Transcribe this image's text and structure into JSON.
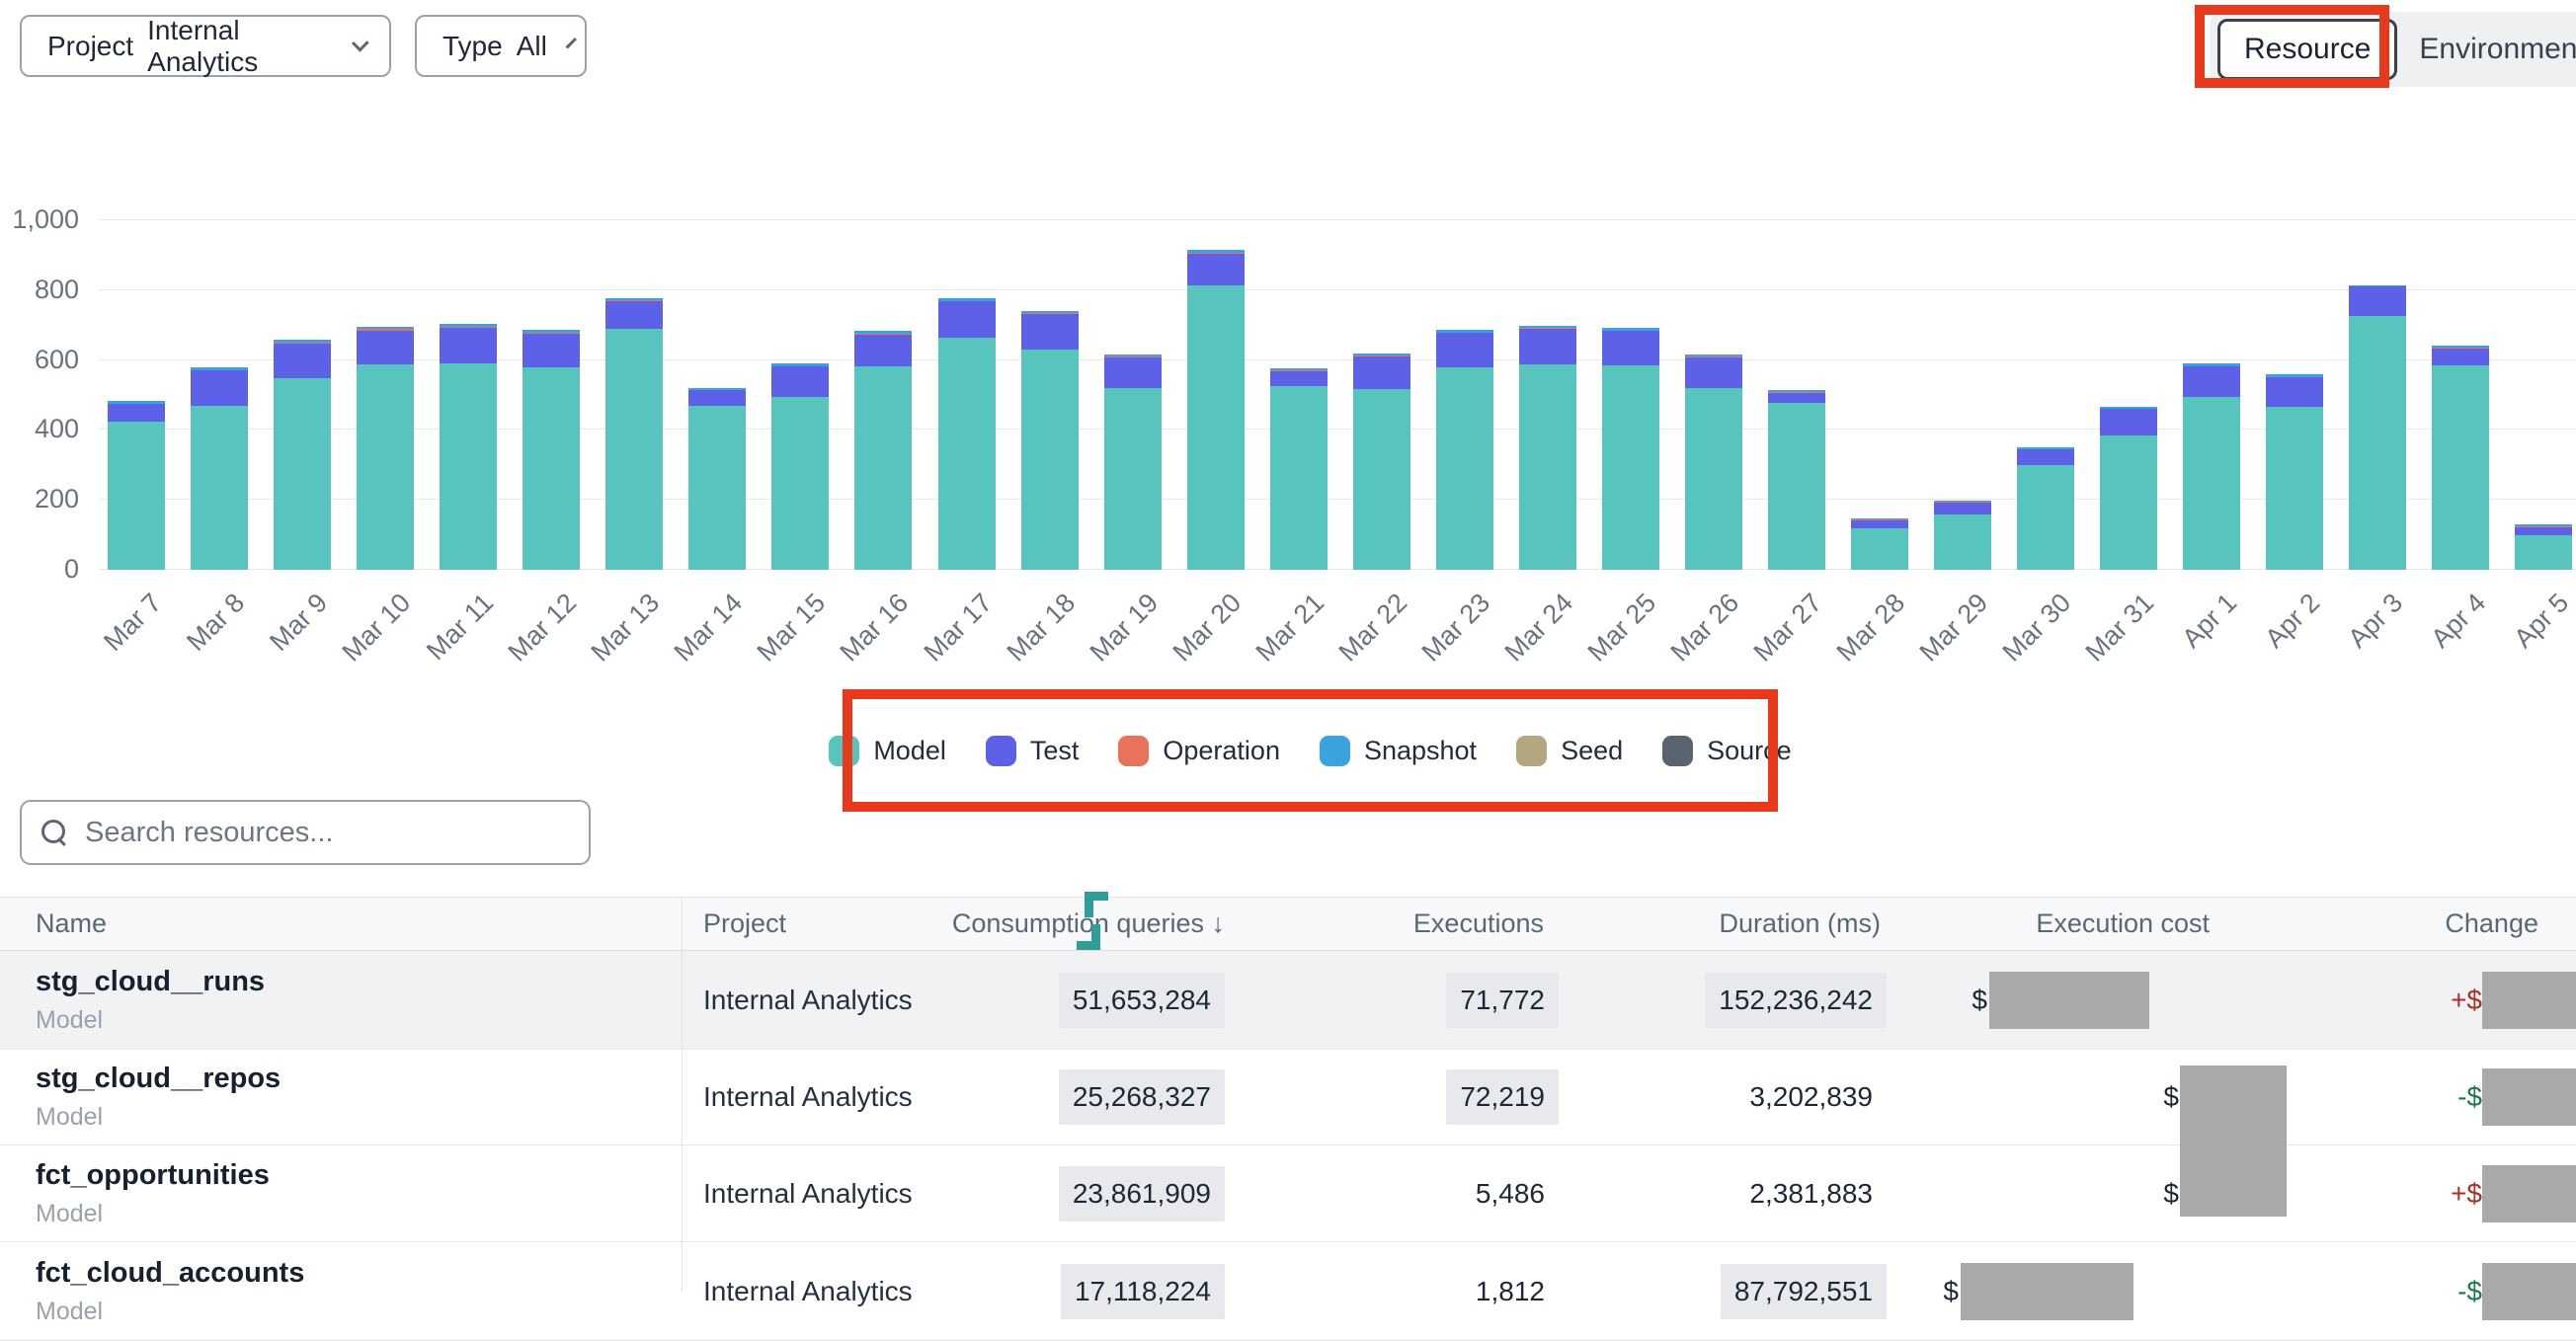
{
  "header": {
    "project_filter": {
      "label": "Project",
      "value": "Internal Analytics"
    },
    "type_filter": {
      "label": "Type",
      "value": "All"
    },
    "view_toggle": {
      "resource": "Resource",
      "environment": "Environment",
      "active": "Resource"
    }
  },
  "chart_data": {
    "type": "bar",
    "stacked": true,
    "title": "",
    "xlabel": "",
    "ylabel": "",
    "ylim": [
      0,
      1000
    ],
    "yticks": [
      0,
      200,
      400,
      600,
      800,
      1000
    ],
    "ytick_labels": [
      "0",
      "200",
      "400",
      "600",
      "800",
      "1,000"
    ],
    "grid": true,
    "legend_position": "bottom",
    "categories": [
      "Mar 7",
      "Mar 8",
      "Mar 9",
      "Mar 10",
      "Mar 11",
      "Mar 12",
      "Mar 13",
      "Mar 14",
      "Mar 15",
      "Mar 16",
      "Mar 17",
      "Mar 18",
      "Mar 19",
      "Mar 20",
      "Mar 21",
      "Mar 22",
      "Mar 23",
      "Mar 24",
      "Mar 25",
      "Mar 26",
      "Mar 27",
      "Mar 28",
      "Mar 29",
      "Mar 30",
      "Mar 31",
      "Apr 1",
      "Apr 2",
      "Apr 3",
      "Apr 4",
      "Apr 5"
    ],
    "series": [
      {
        "name": "Model",
        "color": "#57c4be",
        "values": [
          424,
          470,
          548,
          587,
          590,
          578,
          690,
          468,
          495,
          583,
          663,
          630,
          520,
          815,
          525,
          518,
          578,
          588,
          585,
          520,
          478,
          120,
          158,
          300,
          385,
          495,
          465,
          725,
          585,
          100
        ]
      },
      {
        "name": "Test",
        "color": "#5c61e8",
        "values": [
          52,
          100,
          100,
          98,
          102,
          98,
          78,
          45,
          88,
          90,
          105,
          102,
          88,
          90,
          42,
          92,
          100,
          100,
          100,
          88,
          28,
          20,
          35,
          45,
          75,
          88,
          85,
          85,
          48,
          22
        ]
      },
      {
        "name": "Operation",
        "color": "#e8735a",
        "values": [
          0,
          0,
          3,
          3,
          3,
          3,
          3,
          0,
          0,
          3,
          0,
          3,
          3,
          3,
          3,
          3,
          0,
          3,
          0,
          3,
          3,
          3,
          3,
          0,
          0,
          0,
          0,
          0,
          3,
          3
        ]
      },
      {
        "name": "Snapshot",
        "color": "#3aa3de",
        "values": [
          6,
          8,
          6,
          8,
          8,
          8,
          6,
          6,
          8,
          8,
          8,
          6,
          6,
          8,
          5,
          5,
          8,
          6,
          8,
          5,
          5,
          3,
          3,
          5,
          5,
          8,
          8,
          5,
          5,
          5
        ]
      }
    ]
  },
  "legend": [
    {
      "label": "Model",
      "color": "#57c4be"
    },
    {
      "label": "Test",
      "color": "#5c61e8"
    },
    {
      "label": "Operation",
      "color": "#e8735a"
    },
    {
      "label": "Snapshot",
      "color": "#3aa3de"
    },
    {
      "label": "Seed",
      "color": "#b3a77d"
    },
    {
      "label": "Source",
      "color": "#5a6471"
    }
  ],
  "search": {
    "placeholder": "Search resources..."
  },
  "table": {
    "columns": [
      {
        "label": "Name"
      },
      {
        "label": "Project"
      },
      {
        "label": "Consumption queries",
        "sort_indicator": "↓"
      },
      {
        "label": "Executions"
      },
      {
        "label": "Duration (ms)"
      },
      {
        "label": "Execution cost"
      },
      {
        "label": "Change"
      }
    ],
    "rows": [
      {
        "name": "stg_cloud__runs",
        "type": "Model",
        "project": "Internal Analytics",
        "consumption": "51,653,284",
        "executions": "71,772",
        "duration": "152,236,242",
        "cost_prefix": "$",
        "cost_redacted": true,
        "change_prefix": "+$",
        "change_direction": "up",
        "change_redacted": true,
        "highlights": {
          "consumption": true,
          "executions": true,
          "duration": true
        }
      },
      {
        "name": "stg_cloud__repos",
        "type": "Model",
        "project": "Internal Analytics",
        "consumption": "25,268,327",
        "executions": "72,219",
        "duration": "3,202,839",
        "cost_prefix": "$",
        "cost_redacted": true,
        "change_prefix": "-$",
        "change_direction": "down",
        "change_redacted": true,
        "highlights": {
          "consumption": true,
          "executions": true,
          "duration": false
        }
      },
      {
        "name": "fct_opportunities",
        "type": "Model",
        "project": "Internal Analytics",
        "consumption": "23,861,909",
        "executions": "5,486",
        "duration": "2,381,883",
        "cost_prefix": "$",
        "cost_redacted": true,
        "change_prefix": "+$",
        "change_direction": "up",
        "change_redacted": true,
        "highlights": {
          "consumption": true,
          "executions": false,
          "duration": false
        }
      },
      {
        "name": "fct_cloud_accounts",
        "type": "Model",
        "project": "Internal Analytics",
        "consumption": "17,118,224",
        "executions": "1,812",
        "duration": "87,792,551",
        "cost_prefix": "$",
        "cost_redacted": true,
        "change_prefix": "-$",
        "change_direction": "down",
        "change_redacted": true,
        "highlights": {
          "consumption": true,
          "executions": false,
          "duration": true
        }
      }
    ]
  },
  "annotations": {
    "color": "#e8391c"
  }
}
